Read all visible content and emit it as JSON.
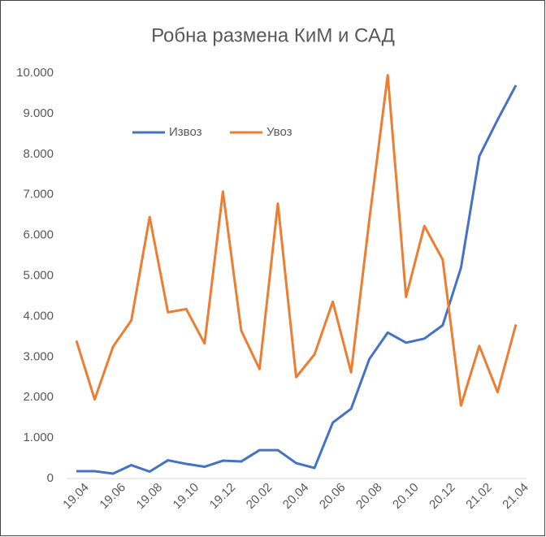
{
  "chart_data": {
    "type": "line",
    "title": "Робна размена КиМ и САД",
    "categories": [
      "19.04",
      null,
      "19.06",
      null,
      "19.08",
      null,
      "19.10",
      null,
      "19.12",
      null,
      "20.02",
      null,
      "20.04",
      null,
      "20.06",
      null,
      "20.08",
      null,
      "20.10",
      null,
      "20.12",
      null,
      "21.02",
      null,
      "21.04"
    ],
    "series": [
      {
        "name": "Извоз",
        "color": "#4472c4",
        "values": [
          180,
          180,
          120,
          330,
          170,
          450,
          360,
          290,
          440,
          420,
          700,
          700,
          380,
          260,
          1380,
          1720,
          2950,
          3600,
          3350,
          3450,
          3780,
          5200,
          7950,
          8850,
          9700
        ]
      },
      {
        "name": "Увоз",
        "color": "#ed7d31",
        "values": [
          3400,
          1950,
          3250,
          3900,
          6450,
          4100,
          4180,
          3330,
          7080,
          3650,
          2700,
          6780,
          2500,
          3060,
          4360,
          2620,
          6400,
          9950,
          4480,
          6230,
          5400,
          1800,
          3270,
          2130,
          3800
        ]
      }
    ],
    "ylim": [
      0,
      10000
    ],
    "yticks": [
      0,
      {
        "value": 1000,
        "label": "1.000"
      },
      {
        "value": 2000,
        "label": "2.000"
      },
      {
        "value": 3000,
        "label": "3.000"
      },
      {
        "value": 4000,
        "label": "4.000"
      },
      {
        "value": 5000,
        "label": "5.000"
      },
      {
        "value": 6000,
        "label": "6.000"
      },
      {
        "value": 7000,
        "label": "7.000"
      },
      {
        "value": 8000,
        "label": "8.000"
      },
      {
        "value": 9000,
        "label": "9.000"
      },
      {
        "value": 10000,
        "label": "10.000"
      }
    ],
    "legend": "top"
  }
}
